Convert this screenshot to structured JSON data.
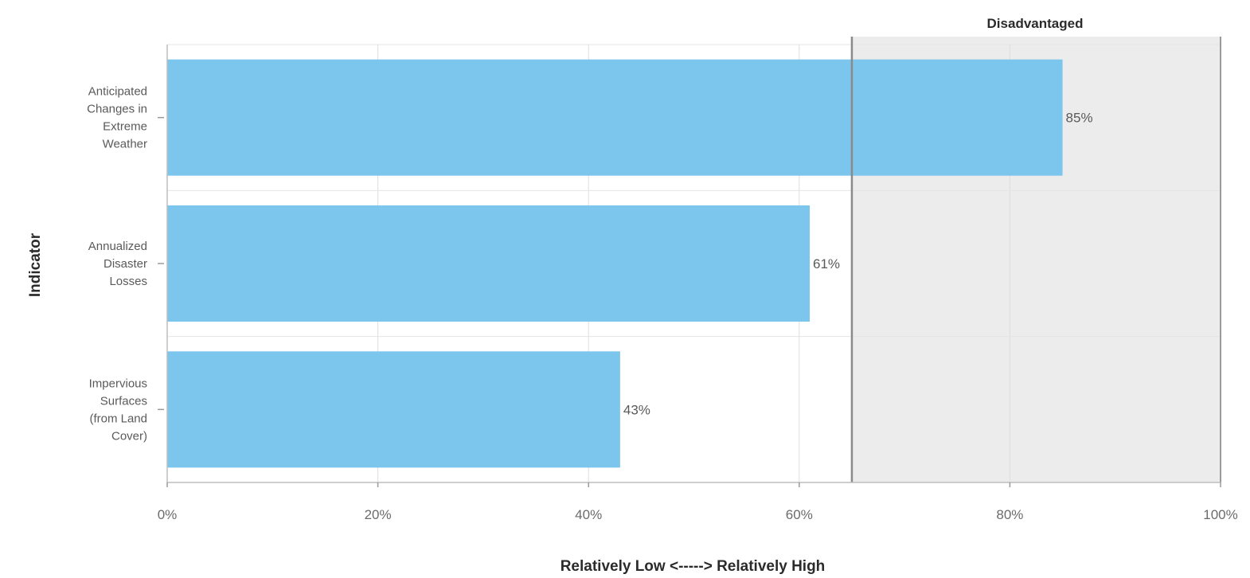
{
  "chart_data": {
    "type": "bar",
    "orientation": "horizontal",
    "categories": [
      "Anticipated Changes in Extreme Weather",
      "Annualized Disaster Losses",
      "Impervious Surfaces (from Land Cover)"
    ],
    "category_lines": [
      [
        "Anticipated",
        "Changes in",
        "Extreme",
        "Weather"
      ],
      [
        "Annualized",
        "Disaster",
        "Losses"
      ],
      [
        "Impervious",
        "Surfaces",
        "(from Land",
        "Cover)"
      ]
    ],
    "values": [
      85,
      61,
      43
    ],
    "data_labels": [
      "85%",
      "61%",
      "43%"
    ],
    "xlabel": "Relatively Low <-----> Relatively High",
    "ylabel": "Indicator",
    "xlim": [
      0,
      100
    ],
    "xticks": [
      0,
      20,
      40,
      60,
      80,
      100
    ],
    "xtick_labels": [
      "0%",
      "20%",
      "40%",
      "60%",
      "80%",
      "100%"
    ],
    "threshold": 65,
    "threshold_region_label": "Disadvantaged",
    "grid": true,
    "bar_color": "#7cc6ee",
    "region_color": "#ececec"
  }
}
